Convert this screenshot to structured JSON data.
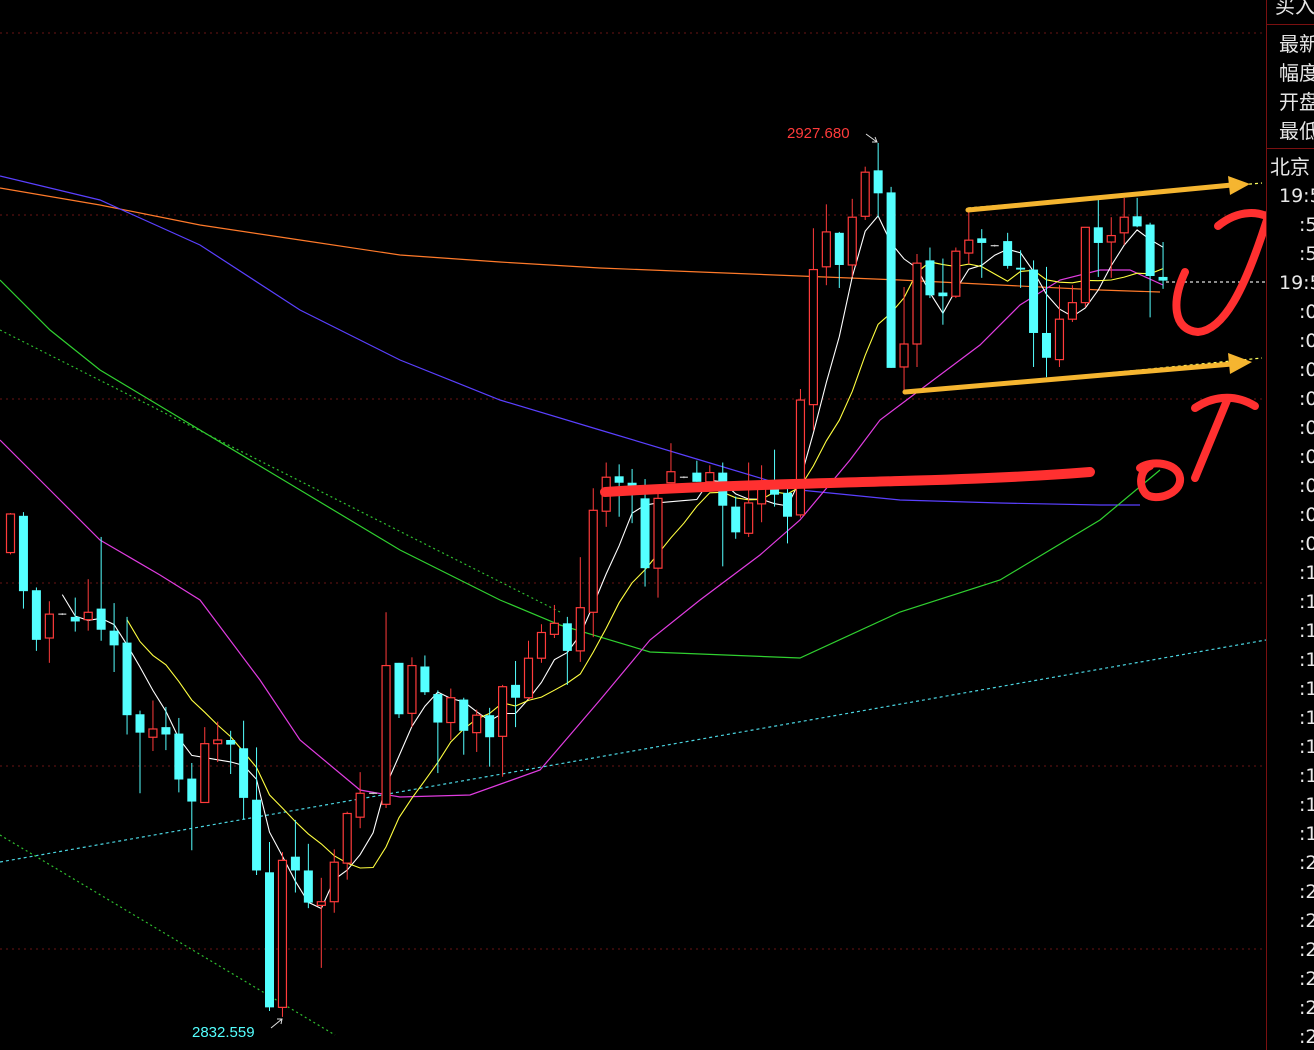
{
  "chart_data": {
    "type": "candlestick",
    "ylim": [
      2828.96,
      2943.24
    ],
    "grid": true,
    "colors": {
      "up": "#ff3b3b",
      "down": "#54ffff",
      "ma5": "#ffffff",
      "ma10": "#ffff40",
      "ma20": "#e03ce0",
      "ma60": "#30d030",
      "ma_blue": "#5a40ff",
      "ma_orange": "#ff7a2a",
      "trend": "#4ad4e0",
      "arrow": "#f5b530",
      "marker": "#ff3030"
    },
    "ohlc": [
      [
        2883.1,
        2887.4,
        2882.9,
        2887.3
      ],
      [
        2887.1,
        2887.5,
        2877.0,
        2878.9
      ],
      [
        2879.0,
        2879.3,
        2872.4,
        2873.6
      ],
      [
        2873.8,
        2877.8,
        2871.1,
        2876.4
      ],
      [
        2876.4,
        2876.5,
        2876.3,
        2876.4
      ],
      [
        2876.1,
        2878.2,
        2874.5,
        2875.6
      ],
      [
        2875.8,
        2880.2,
        2874.6,
        2876.6
      ],
      [
        2877.0,
        2884.8,
        2873.5,
        2874.7
      ],
      [
        2874.6,
        2877.6,
        2870.1,
        2873.0
      ],
      [
        2873.3,
        2876.1,
        2863.3,
        2865.4
      ],
      [
        2865.5,
        2865.9,
        2856.9,
        2863.5
      ],
      [
        2863.0,
        2867.0,
        2861.5,
        2863.9
      ],
      [
        2864.1,
        2866.3,
        2861.6,
        2863.3
      ],
      [
        2863.4,
        2865.1,
        2857.0,
        2858.4
      ],
      [
        2858.5,
        2860.2,
        2850.7,
        2856.0
      ],
      [
        2855.9,
        2864.1,
        2855.9,
        2862.3
      ],
      [
        2862.3,
        2864.7,
        2860.3,
        2862.7
      ],
      [
        2862.7,
        2863.7,
        2859.0,
        2862.2
      ],
      [
        2861.8,
        2864.8,
        2854.1,
        2856.4
      ],
      [
        2856.2,
        2861.9,
        2848.0,
        2848.5
      ],
      [
        2848.3,
        2851.6,
        2833.2,
        2833.6
      ],
      [
        2833.6,
        2850.5,
        2832.559,
        2849.6
      ],
      [
        2850.0,
        2854.0,
        2846.1,
        2848.5
      ],
      [
        2848.5,
        2851.4,
        2844.4,
        2845.0
      ],
      [
        2844.7,
        2847.7,
        2837.9,
        2845.1
      ],
      [
        2845.1,
        2850.8,
        2843.9,
        2849.4
      ],
      [
        2849.3,
        2854.9,
        2847.5,
        2854.7
      ],
      [
        2854.3,
        2859.2,
        2853.1,
        2856.9
      ],
      [
        2856.9,
        2857.0,
        2856.8,
        2856.9
      ],
      [
        2855.7,
        2876.6,
        2855.3,
        2870.8
      ],
      [
        2871.1,
        2871.1,
        2865.1,
        2865.5
      ],
      [
        2865.6,
        2871.7,
        2864.1,
        2870.8
      ],
      [
        2870.7,
        2871.9,
        2867.6,
        2867.9
      ],
      [
        2867.7,
        2868.1,
        2859.1,
        2864.6
      ],
      [
        2864.6,
        2868.3,
        2862.7,
        2867.3
      ],
      [
        2867.1,
        2867.3,
        2861.1,
        2863.7
      ],
      [
        2863.5,
        2866.0,
        2861.4,
        2865.4
      ],
      [
        2865.4,
        2866.2,
        2859.8,
        2863.0
      ],
      [
        2863.1,
        2868.7,
        2858.7,
        2868.5
      ],
      [
        2868.7,
        2871.3,
        2864.1,
        2867.3
      ],
      [
        2867.3,
        2873.5,
        2867.1,
        2871.6
      ],
      [
        2871.6,
        2875.3,
        2871.1,
        2874.4
      ],
      [
        2874.2,
        2877.4,
        2873.8,
        2875.4
      ],
      [
        2875.4,
        2876.1,
        2868.7,
        2872.4
      ],
      [
        2872.4,
        2882.6,
        2871.2,
        2877.1
      ],
      [
        2876.6,
        2890.1,
        2873.9,
        2887.7
      ],
      [
        2887.6,
        2892.9,
        2885.9,
        2891.3
      ],
      [
        2891.4,
        2892.7,
        2887.0,
        2890.7
      ],
      [
        2890.7,
        2892.2,
        2886.3,
        2890.2
      ],
      [
        2889.0,
        2891.1,
        2879.4,
        2881.4
      ],
      [
        2881.4,
        2889.6,
        2878.2,
        2889.0
      ],
      [
        2890.7,
        2895.0,
        2890.7,
        2891.9
      ],
      [
        2891.3,
        2891.4,
        2891.2,
        2891.3
      ],
      [
        2891.8,
        2893.1,
        2890.8,
        2890.8
      ],
      [
        2890.8,
        2892.6,
        2890.5,
        2891.8
      ],
      [
        2891.8,
        2892.9,
        2881.6,
        2888.2
      ],
      [
        2888.1,
        2889.2,
        2884.6,
        2885.3
      ],
      [
        2885.2,
        2892.9,
        2884.8,
        2888.5
      ],
      [
        2888.4,
        2892.6,
        2886.4,
        2890.7
      ],
      [
        2890.7,
        2894.3,
        2888.1,
        2889.4
      ],
      [
        2889.6,
        2890.7,
        2884.1,
        2887.0
      ],
      [
        2887.2,
        2900.9,
        2886.9,
        2899.7
      ],
      [
        2899.2,
        2918.4,
        2896.4,
        2913.9
      ],
      [
        2914.2,
        2921.0,
        2912.2,
        2918.0
      ],
      [
        2917.9,
        2918.0,
        2911.9,
        2914.4
      ],
      [
        2914.4,
        2921.6,
        2913.1,
        2919.6
      ],
      [
        2919.7,
        2925.1,
        2919.3,
        2924.5
      ],
      [
        2924.7,
        2927.68,
        2919.6,
        2922.2
      ],
      [
        2922.3,
        2922.9,
        2903.2,
        2903.2
      ],
      [
        2903.3,
        2912.0,
        2900.4,
        2905.8
      ],
      [
        2905.8,
        2915.6,
        2903.3,
        2914.6
      ],
      [
        2914.9,
        2916.3,
        2910.8,
        2911.1
      ],
      [
        2911.4,
        2915.1,
        2907.9,
        2911.0
      ],
      [
        2911.0,
        2916.3,
        2910.8,
        2915.9
      ],
      [
        2915.7,
        2920.3,
        2914.5,
        2917.1
      ],
      [
        2917.3,
        2918.3,
        2913.0,
        2916.8
      ],
      [
        2916.5,
        2916.6,
        2916.4,
        2916.5
      ],
      [
        2917.0,
        2917.9,
        2914.0,
        2914.3
      ],
      [
        2914.1,
        2916.0,
        2911.9,
        2913.9
      ],
      [
        2913.9,
        2914.9,
        2903.3,
        2907.0
      ],
      [
        2907.0,
        2914.2,
        2902.2,
        2904.3
      ],
      [
        2904.1,
        2912.2,
        2903.3,
        2908.5
      ],
      [
        2908.5,
        2912.2,
        2908.2,
        2910.3
      ],
      [
        2910.3,
        2918.5,
        2909.8,
        2918.5
      ],
      [
        2918.5,
        2921.5,
        2913.1,
        2916.8
      ],
      [
        2916.9,
        2919.6,
        2913.0,
        2917.6
      ],
      [
        2917.9,
        2921.7,
        2916.6,
        2919.6
      ],
      [
        2919.7,
        2921.7,
        2918.5,
        2918.6
      ],
      [
        2918.8,
        2919.0,
        2908.7,
        2913.2
      ],
      [
        2913.1,
        2916.9,
        2911.8,
        2912.7
      ]
    ],
    "annotations": {
      "high_label": "2927.680",
      "low_label": "2832.559"
    }
  },
  "side_panel": {
    "top_label": "买入",
    "quote_labels": [
      "最新",
      "幅度",
      "开盘",
      "最低"
    ],
    "region_label": "北京",
    "time_rows": [
      "19:5",
      ":5",
      ":5",
      "19:5",
      ":0",
      ":0",
      ":0",
      ":0",
      ":0",
      ":0",
      ":0",
      ":0",
      ":0",
      ":1",
      ":1",
      ":1",
      ":1",
      ":1",
      ":1",
      ":1",
      ":1",
      ":1",
      ":1",
      ":2",
      ":2",
      ":2",
      ":2",
      ":2",
      ":2",
      ":2"
    ]
  }
}
